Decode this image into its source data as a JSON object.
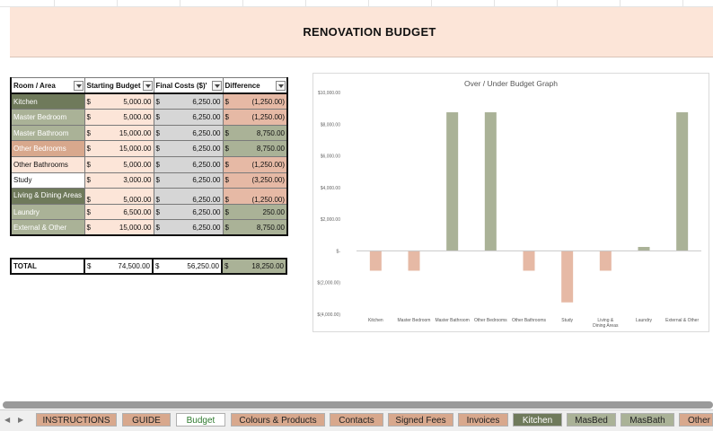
{
  "title": "RENOVATION BUDGET",
  "table": {
    "headers": [
      "Room / Area",
      "Starting Budget",
      "Final Costs ($)'",
      "Difference"
    ],
    "currency": "$",
    "rows": [
      {
        "room": "Kitchen",
        "start": "5,000.00",
        "final": "6,250.00",
        "diff": "(1,250.00)"
      },
      {
        "room": "Master Bedroom",
        "start": "5,000.00",
        "final": "6,250.00",
        "diff": "(1,250.00)"
      },
      {
        "room": "Master Bathroom",
        "start": "15,000.00",
        "final": "6,250.00",
        "diff": "8,750.00"
      },
      {
        "room": "Other Bedrooms",
        "start": "15,000.00",
        "final": "6,250.00",
        "diff": "8,750.00"
      },
      {
        "room": "Other Bathrooms",
        "start": "5,000.00",
        "final": "6,250.00",
        "diff": "(1,250.00)"
      },
      {
        "room": "Study",
        "start": "3,000.00",
        "final": "6,250.00",
        "diff": "(3,250.00)"
      },
      {
        "room": "Living & Dining Areas",
        "start": "5,000.00",
        "final": "6,250.00",
        "diff": "(1,250.00)"
      },
      {
        "room": "Laundry",
        "start": "6,500.00",
        "final": "6,250.00",
        "diff": "250.00"
      },
      {
        "room": "External & Other",
        "start": "15,000.00",
        "final": "6,250.00",
        "diff": "8,750.00"
      }
    ],
    "total": {
      "label": "TOTAL",
      "start": "74,500.00",
      "final": "56,250.00",
      "diff": "18,250.00"
    }
  },
  "chart_data": {
    "type": "bar",
    "title": "Over / Under Budget Graph",
    "categories": [
      "Kitchen",
      "Master Bedroom",
      "Master Bathroom",
      "Other Bedrooms",
      "Other Bathrooms",
      "Study",
      "Living & Dining Areas",
      "Laundry",
      "External & Other"
    ],
    "values": [
      -1250,
      -1250,
      8750,
      8750,
      -1250,
      -3250,
      -1250,
      250,
      8750
    ],
    "ylim": [
      -4000,
      10000
    ],
    "yticks": [
      -4000,
      -2000,
      0,
      2000,
      4000,
      6000,
      8000,
      10000
    ],
    "ytick_labels": [
      "$(4,000.00)",
      "$(2,000.00)",
      "$-",
      "$2,000.00",
      "$4,000.00",
      "$6,000.00",
      "$8,000.00",
      "$10,000.00"
    ],
    "colors": {
      "positive": "#aab297",
      "negative": "#e6b9a5"
    },
    "xlabel": "",
    "ylabel": "",
    "grid": false,
    "legend": "none"
  },
  "tabs": [
    {
      "label": "INSTRUCTIONS",
      "color": "rose"
    },
    {
      "label": "GUIDE",
      "color": "rose"
    },
    {
      "label": "Budget",
      "color": "white",
      "active": true
    },
    {
      "label": "Colours & Products",
      "color": "rose"
    },
    {
      "label": "Contacts",
      "color": "rose"
    },
    {
      "label": "Signed Fees",
      "color": "rose"
    },
    {
      "label": "Invoices",
      "color": "rose"
    },
    {
      "label": "Kitchen",
      "color": "green"
    },
    {
      "label": "MasBed",
      "color": "sage"
    },
    {
      "label": "MasBath",
      "color": "sage"
    },
    {
      "label": "Other B",
      "color": "rose"
    }
  ],
  "nav": {
    "prev": "◀",
    "next": "▶"
  }
}
